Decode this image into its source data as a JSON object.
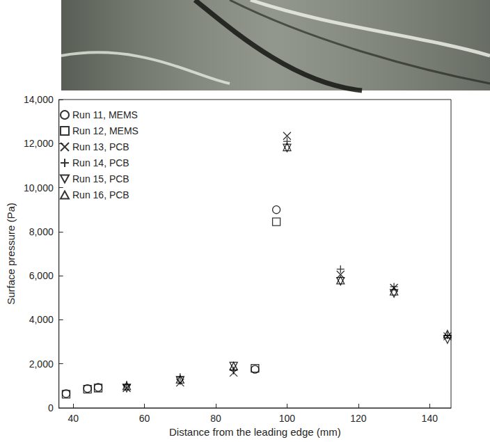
{
  "chart_data": {
    "type": "scatter",
    "xlabel": "Distance from the leading edge (mm)",
    "ylabel": "Surface pressure (Pa)",
    "xlim": [
      36,
      146
    ],
    "xticks": [
      40,
      60,
      80,
      100,
      120,
      140
    ],
    "ylim": [
      0,
      14000
    ],
    "yticks": [
      0,
      2000,
      4000,
      6000,
      8000,
      10000,
      12000,
      14000
    ],
    "grid": false,
    "legend": "upper left",
    "series": [
      {
        "name": "Run 11, MEMS",
        "color": "#000000",
        "marker": "circle",
        "x": [
          38,
          44,
          47,
          91,
          97
        ],
        "values": [
          650,
          880,
          930,
          1750,
          9000
        ]
      },
      {
        "name": "Run 12, MEMS",
        "color": "#000000",
        "marker": "square",
        "x": [
          38,
          44,
          47,
          91,
          97
        ],
        "values": [
          620,
          850,
          900,
          1800,
          8450
        ]
      },
      {
        "name": "Run 13, PCB",
        "color": "#000000",
        "marker": "x",
        "x": [
          55,
          70,
          85,
          100,
          115,
          130,
          145
        ],
        "values": [
          900,
          1150,
          1600,
          12350,
          6050,
          5450,
          3250
        ]
      },
      {
        "name": "Run 14, PCB",
        "color": "#000000",
        "marker": "plus",
        "x": [
          55,
          70,
          85,
          100,
          115,
          130,
          145
        ],
        "values": [
          1050,
          1400,
          1700,
          12100,
          6300,
          5500,
          3300
        ]
      },
      {
        "name": "Run 15, PCB",
        "color": "#000000",
        "marker": "triangle_down",
        "x": [
          55,
          70,
          85,
          100,
          115,
          130,
          145
        ],
        "values": [
          900,
          1250,
          1900,
          11800,
          5750,
          5200,
          3100
        ]
      },
      {
        "name": "Run 16, PCB",
        "color": "#000000",
        "marker": "triangle_up",
        "x": [
          55,
          70,
          85,
          100,
          115,
          130,
          145
        ],
        "values": [
          1000,
          1300,
          1900,
          11850,
          5800,
          5300,
          3350
        ]
      }
    ]
  }
}
